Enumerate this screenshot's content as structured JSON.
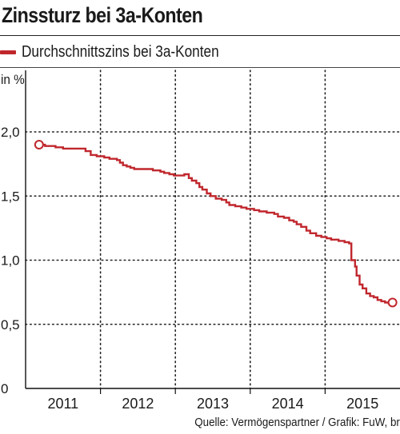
{
  "header": {
    "title": "Zinssturz bei 3a-Konten"
  },
  "legend": {
    "label": "Durchschnittszins bei 3a-Konten"
  },
  "colors": {
    "series": "#c0272d",
    "grid": "#222222",
    "text": "#1a1a1a"
  },
  "footer": {
    "source": "Quelle: Vermögenspartner / Grafik: FuW, br"
  },
  "chart_data": {
    "type": "line",
    "ylabel": "in %",
    "ylim": [
      0,
      2.0
    ],
    "xlim": [
      2010.68,
      2015.4
    ],
    "yticks": [
      {
        "value": 0,
        "label": "0"
      },
      {
        "value": 0.5,
        "label": "0,5"
      },
      {
        "value": 1.0,
        "label": "1,0"
      },
      {
        "value": 1.5,
        "label": "1,5"
      },
      {
        "value": 2.0,
        "label": "2,0"
      }
    ],
    "year_labels": [
      "2011",
      "2012",
      "2013",
      "2014",
      "2015"
    ],
    "year_label_positions": [
      2011.0,
      2012.0,
      2013.0,
      2014.0,
      2015.0
    ],
    "vertical_gridlines": [
      2011.5,
      2012.5,
      2013.5,
      2014.5
    ],
    "grid": "dotted-vertical-and-horizontal",
    "step": true,
    "markers": "start-and-end",
    "series": [
      {
        "name": "Durchschnittszins bei 3a-Konten",
        "points": [
          [
            2010.68,
            1.9
          ],
          [
            2010.76,
            1.89
          ],
          [
            2010.9,
            1.88
          ],
          [
            2011.0,
            1.87
          ],
          [
            2011.1,
            1.87
          ],
          [
            2011.2,
            1.87
          ],
          [
            2011.3,
            1.85
          ],
          [
            2011.37,
            1.82
          ],
          [
            2011.45,
            1.81
          ],
          [
            2011.55,
            1.8
          ],
          [
            2011.62,
            1.79
          ],
          [
            2011.72,
            1.78
          ],
          [
            2011.76,
            1.76
          ],
          [
            2011.8,
            1.74
          ],
          [
            2011.85,
            1.73
          ],
          [
            2011.9,
            1.72
          ],
          [
            2011.95,
            1.71
          ],
          [
            2012.05,
            1.71
          ],
          [
            2012.15,
            1.71
          ],
          [
            2012.2,
            1.7
          ],
          [
            2012.3,
            1.69
          ],
          [
            2012.35,
            1.68
          ],
          [
            2012.42,
            1.67
          ],
          [
            2012.48,
            1.66
          ],
          [
            2012.54,
            1.66
          ],
          [
            2012.62,
            1.67
          ],
          [
            2012.68,
            1.64
          ],
          [
            2012.72,
            1.62
          ],
          [
            2012.78,
            1.6
          ],
          [
            2012.82,
            1.57
          ],
          [
            2012.86,
            1.55
          ],
          [
            2012.92,
            1.52
          ],
          [
            2012.97,
            1.5
          ],
          [
            2013.04,
            1.48
          ],
          [
            2013.12,
            1.47
          ],
          [
            2013.18,
            1.45
          ],
          [
            2013.22,
            1.43
          ],
          [
            2013.3,
            1.42
          ],
          [
            2013.38,
            1.41
          ],
          [
            2013.45,
            1.4
          ],
          [
            2013.55,
            1.39
          ],
          [
            2013.62,
            1.38
          ],
          [
            2013.72,
            1.37
          ],
          [
            2013.82,
            1.36
          ],
          [
            2013.87,
            1.34
          ],
          [
            2013.95,
            1.33
          ],
          [
            2014.02,
            1.31
          ],
          [
            2014.08,
            1.3
          ],
          [
            2014.12,
            1.28
          ],
          [
            2014.18,
            1.26
          ],
          [
            2014.25,
            1.23
          ],
          [
            2014.3,
            1.21
          ],
          [
            2014.38,
            1.19
          ],
          [
            2014.45,
            1.18
          ],
          [
            2014.52,
            1.17
          ],
          [
            2014.58,
            1.16
          ],
          [
            2014.68,
            1.15
          ],
          [
            2014.76,
            1.14
          ],
          [
            2014.82,
            1.13
          ],
          [
            2014.85,
            1.0
          ],
          [
            2014.9,
            0.95
          ],
          [
            2014.92,
            0.88
          ],
          [
            2014.96,
            0.81
          ],
          [
            2015.0,
            0.78
          ],
          [
            2015.05,
            0.74
          ],
          [
            2015.1,
            0.72
          ],
          [
            2015.15,
            0.71
          ],
          [
            2015.2,
            0.69
          ],
          [
            2015.25,
            0.68
          ],
          [
            2015.3,
            0.67
          ],
          [
            2015.35,
            0.66
          ],
          [
            2015.4,
            0.67
          ]
        ]
      }
    ]
  }
}
